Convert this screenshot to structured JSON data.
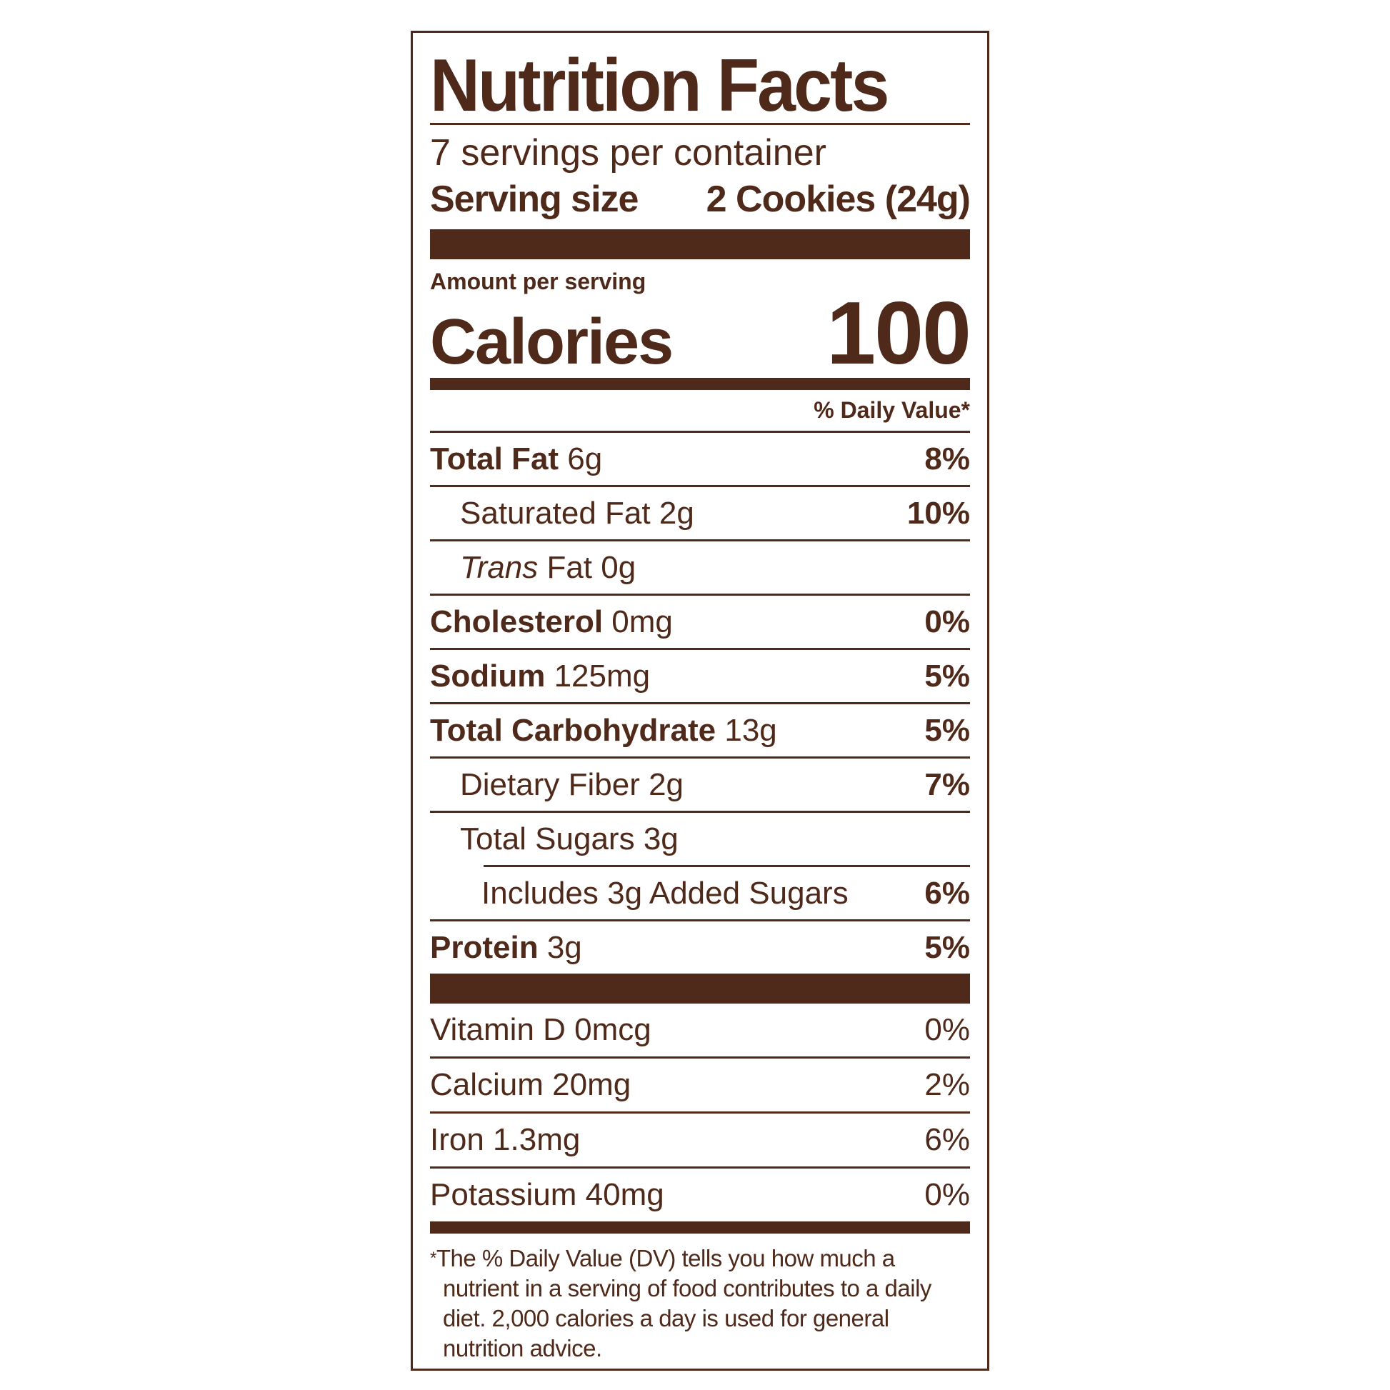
{
  "title": "Nutrition Facts",
  "servings_per_container": "7 servings per container",
  "serving_size": {
    "label": "Serving size",
    "value": "2 Cookies (24g)"
  },
  "amount_per_serving": "Amount per serving",
  "calories": {
    "label": "Calories",
    "value": "100"
  },
  "daily_value_header": "% Daily Value*",
  "nutrients": [
    {
      "name": "Total Fat",
      "amount": "6g",
      "dv": "8%"
    },
    {
      "name": "Saturated Fat",
      "amount": "2g",
      "dv": "10%"
    },
    {
      "name": "Trans",
      "name_rest": "Fat",
      "amount": "0g",
      "dv": ""
    },
    {
      "name": "Cholesterol",
      "amount": "0mg",
      "dv": "0%"
    },
    {
      "name": "Sodium",
      "amount": "125mg",
      "dv": "5%"
    },
    {
      "name": "Total Carbohydrate",
      "amount": "13g",
      "dv": "5%"
    },
    {
      "name": "Dietary Fiber",
      "amount": "2g",
      "dv": "7%"
    },
    {
      "name": "Total Sugars",
      "amount": "3g",
      "dv": ""
    },
    {
      "name": "Includes 3g Added Sugars",
      "amount": "",
      "dv": "6%"
    },
    {
      "name": "Protein",
      "amount": "3g",
      "dv": "5%"
    }
  ],
  "vitamins": [
    {
      "text": "Vitamin D 0mcg",
      "dv": "0%"
    },
    {
      "text": "Calcium 20mg",
      "dv": "2%"
    },
    {
      "text": "Iron 1.3mg",
      "dv": "6%"
    },
    {
      "text": "Potassium 40mg",
      "dv": "0%"
    }
  ],
  "footnote": {
    "asterisk": "*",
    "text": "The % Daily Value (DV) tells you how much a nutrient in a serving of food contributes to a daily diet. 2,000 calories a day is used for general nutrition advice."
  },
  "colors": {
    "ink": "#4f2a1a",
    "background": "#ffffff"
  }
}
